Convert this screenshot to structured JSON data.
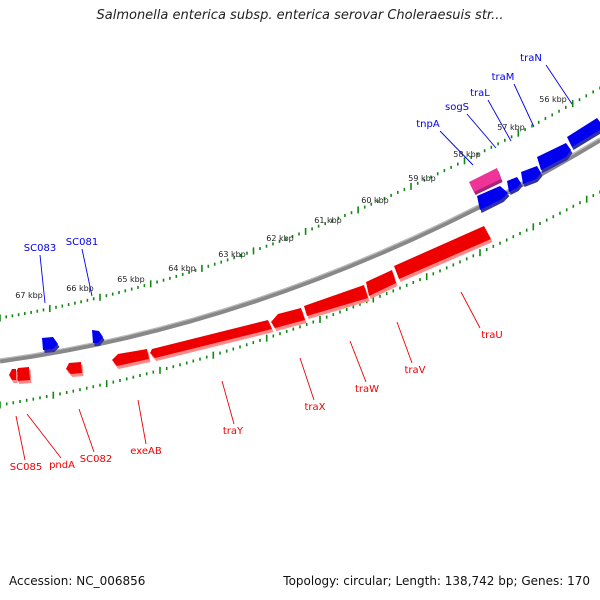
{
  "title": "Salmonella enterica subsp. enterica serovar Choleraesuis str...",
  "footer": {
    "accession": "Accession: NC_006856",
    "summary": "Topology: circular; Length: 138,742 bp; Genes: 170"
  },
  "colors": {
    "forward_gene": "#0000ee",
    "reverse_gene": "#ee0000",
    "mobile_element": "#ee3399",
    "backbone": "#888888",
    "ticks": "#118811"
  },
  "kbp_labels": [
    "56 kbp",
    "57 kbp",
    "58 kbp",
    "59 kbp",
    "60 kbp",
    "61 kbp",
    "62 kbp",
    "63 kbp",
    "64 kbp",
    "65 kbp",
    "66 kbp",
    "67 kbp"
  ],
  "forward_genes": [
    "traN",
    "traM",
    "traL",
    "sogS",
    "tnpA",
    "SC081",
    "SC083"
  ],
  "reverse_genes": [
    "traU",
    "traV",
    "traW",
    "traX",
    "traY",
    "exeAB",
    "SC082",
    "pndA",
    "SC085"
  ]
}
